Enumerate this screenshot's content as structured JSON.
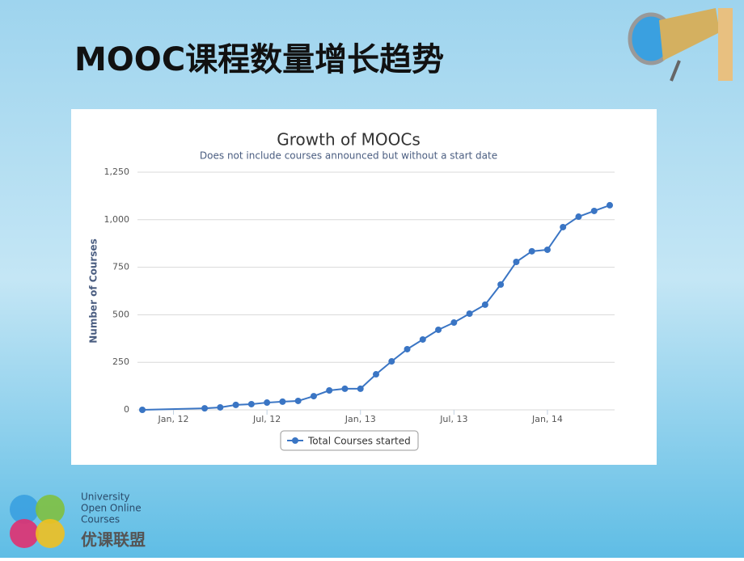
{
  "slide": {
    "title": "MOOC课程数量增长趋势"
  },
  "logo": {
    "line1": "University",
    "line2": "Open Online",
    "line3": "Courses",
    "cn": "优课联盟"
  },
  "chart_data": {
    "type": "line",
    "title": "Growth of MOOCs",
    "subtitle": "Does not include courses announced but without a start date",
    "y_label": "Number of Courses",
    "x": [
      "2011-11",
      "2012-03",
      "2012-04",
      "2012-05",
      "2012-06",
      "2012-07",
      "2012-08",
      "2012-09",
      "2012-10",
      "2012-11",
      "2012-12",
      "2013-01",
      "2013-02",
      "2013-03",
      "2013-04",
      "2013-05",
      "2013-06",
      "2013-07",
      "2013-08",
      "2013-09",
      "2013-10",
      "2013-11",
      "2013-12",
      "2014-01",
      "2014-02",
      "2014-03",
      "2014-04",
      "2014-05"
    ],
    "series": [
      {
        "name": "Total Courses started",
        "color": "#3a75c4",
        "values": [
          0,
          8,
          13,
          26,
          30,
          38,
          43,
          47,
          72,
          102,
          111,
          111,
          187,
          255,
          319,
          370,
          421,
          459,
          506,
          553,
          659,
          778,
          834,
          842,
          961,
          1016,
          1046,
          1076
        ]
      }
    ],
    "xlim": [
      "2011-11",
      "2014-05"
    ],
    "xticks": [
      {
        "value": "2012-01",
        "label": "Jan, 12"
      },
      {
        "value": "2012-07",
        "label": "Jul, 12"
      },
      {
        "value": "2013-01",
        "label": "Jan, 13"
      },
      {
        "value": "2013-07",
        "label": "Jul, 13"
      },
      {
        "value": "2014-01",
        "label": "Jan, 14"
      }
    ],
    "ylim": [
      0,
      1250
    ],
    "yticks": [
      0,
      250,
      500,
      750,
      {
        "value": 1000,
        "label": "1,000"
      },
      {
        "value": 1250,
        "label": "1,250"
      }
    ],
    "grid": true
  }
}
